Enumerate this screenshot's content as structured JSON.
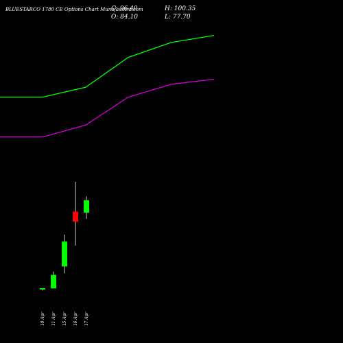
{
  "header": {
    "title": "BLUESTARCO 1780 CE Options Chart Munafasutra.com",
    "close": "C: 96.40",
    "high": "H: 100.35",
    "open": "O: 84.10",
    "low": "L: 77.70"
  },
  "colors": {
    "background": "#000000",
    "up": "#00ff00",
    "down": "#ff0000",
    "upper_line": "#00ff00",
    "lower_line": "#cc00cc",
    "wick": "#ffffff",
    "text": "#ffffff"
  },
  "chart_data": {
    "type": "candlestick",
    "x_labels": [
      "10 Apr",
      "11 Apr",
      "15 Apr",
      "16 Apr",
      "17 Apr"
    ],
    "candles": [
      {
        "date": "10 Apr",
        "open": 7.5,
        "high": 8.2,
        "low": 6.0,
        "close": 8.2
      },
      {
        "date": "11 Apr",
        "open": 8.0,
        "high": 25.0,
        "low": 8.0,
        "close": 21.5
      },
      {
        "date": "15 Apr",
        "open": 30.0,
        "high": 62.0,
        "low": 23.0,
        "close": 55.0
      },
      {
        "date": "16 Apr",
        "open": 85.0,
        "high": 115.0,
        "low": 51.0,
        "close": 75.0
      },
      {
        "date": "17 Apr",
        "open": 84.1,
        "high": 100.35,
        "low": 77.7,
        "close": 96.4
      }
    ],
    "upper_band": [
      200,
      200,
      210,
      240,
      255,
      262
    ],
    "lower_band": [
      160,
      160,
      172,
      200,
      213,
      218
    ],
    "ylim": [
      0,
      270
    ],
    "grid": false
  }
}
